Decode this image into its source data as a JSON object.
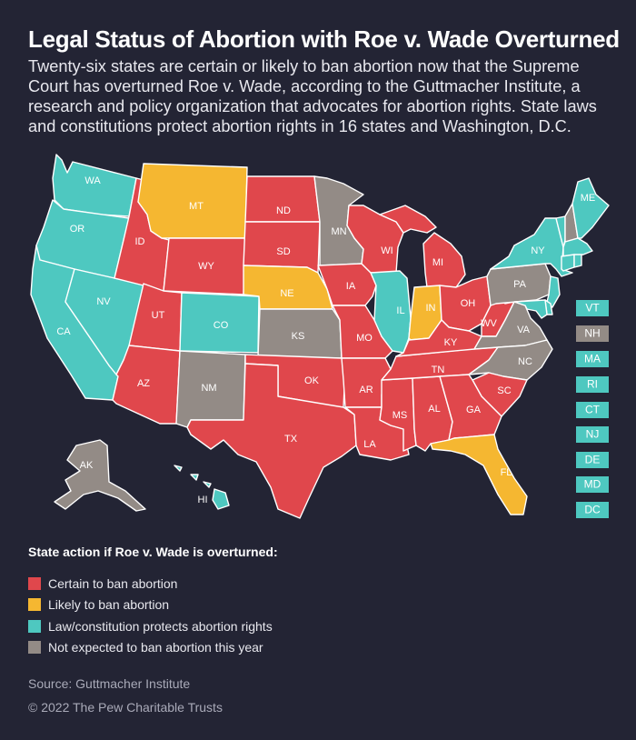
{
  "title": "Legal Status of Abortion with Roe v. Wade Overturned",
  "subtitle": "Twenty-six states are certain or likely to ban abortion now that the Supreme Court has overturned Roe v. Wade, according to the Guttmacher Institute, a research and policy organization that advocates for abortion rights. State laws and constitutions protect abortion rights in 16 states and Washington, D.C.",
  "colors": {
    "background": "#232434",
    "certain": "#e0474c",
    "likely": "#f5b731",
    "protects": "#4ec8c0",
    "not_expected": "#938b86"
  },
  "legend": {
    "title": "State action if Roe v. Wade is overturned:",
    "items": [
      {
        "key": "certain",
        "label": "Certain to ban abortion",
        "color": "#e0474c"
      },
      {
        "key": "likely",
        "label": "Likely to ban abortion",
        "color": "#f5b731"
      },
      {
        "key": "protects",
        "label": "Law/constitution protects abortion rights",
        "color": "#4ec8c0"
      },
      {
        "key": "not_expected",
        "label": "Not expected to ban abortion this year",
        "color": "#938b86"
      }
    ]
  },
  "states": {
    "WA": "protects",
    "OR": "protects",
    "CA": "protects",
    "NV": "protects",
    "ID": "certain",
    "MT": "likely",
    "WY": "certain",
    "UT": "certain",
    "AZ": "certain",
    "CO": "protects",
    "NM": "not_expected",
    "ND": "certain",
    "SD": "certain",
    "NE": "likely",
    "KS": "not_expected",
    "OK": "certain",
    "TX": "certain",
    "MN": "not_expected",
    "IA": "certain",
    "MO": "certain",
    "AR": "certain",
    "LA": "certain",
    "WI": "certain",
    "IL": "protects",
    "MS": "certain",
    "MI": "certain",
    "IN": "likely",
    "KY": "certain",
    "TN": "certain",
    "AL": "certain",
    "OH": "certain",
    "WV": "certain",
    "VA": "not_expected",
    "NC": "not_expected",
    "SC": "certain",
    "GA": "certain",
    "FL": "likely",
    "PA": "not_expected",
    "NY": "protects",
    "ME": "protects",
    "AK": "not_expected",
    "HI": "protects",
    "VT": "protects",
    "NH": "not_expected",
    "MA": "protects",
    "RI": "protects",
    "CT": "protects",
    "NJ": "protects",
    "DE": "protects",
    "MD": "protects",
    "DC": "protects"
  },
  "small_states": [
    "VT",
    "NH",
    "MA",
    "RI",
    "CT",
    "NJ",
    "DE",
    "MD",
    "DC"
  ],
  "source": "Source: Guttmacher Institute",
  "copyright": "© 2022 The Pew Charitable Trusts"
}
